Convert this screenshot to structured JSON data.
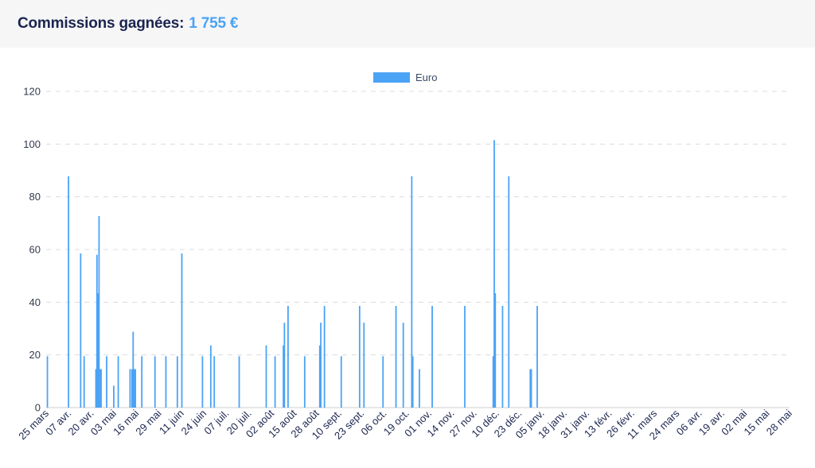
{
  "header": {
    "label": "Commissions gagnées:",
    "amount": "1 755 €"
  },
  "chart_data": {
    "type": "bar",
    "legend": {
      "label": "Euro",
      "position": "top-center"
    },
    "color": "#4ba3f5",
    "ylim": [
      0,
      120
    ],
    "yticks": [
      0,
      20,
      40,
      60,
      80,
      100,
      120
    ],
    "grid": true,
    "xticks": [
      "25 mars",
      "07 avr.",
      "20 avr.",
      "03 mai",
      "16 mai",
      "29 mai",
      "11 juin",
      "24 juin",
      "07 juil.",
      "20 juil.",
      "02 août",
      "15 août",
      "28 août",
      "10 sept.",
      "23 sept.",
      "06 oct.",
      "19 oct.",
      "01 nov.",
      "14 nov.",
      "27 nov.",
      "10 déc.",
      "23 déc.",
      "05 janv.",
      "18 janv.",
      "31 janv.",
      "13 févr.",
      "26 févr.",
      "11 mars",
      "24 mars",
      "06 avr.",
      "19 avr.",
      "02 mai",
      "15 mai",
      "28 mai"
    ],
    "points": [
      {
        "day": 0.3,
        "value": 19.5
      },
      {
        "day": 12.5,
        "value": 87.8
      },
      {
        "day": 19.5,
        "value": 58.5
      },
      {
        "day": 21.5,
        "value": 19.5
      },
      {
        "day": 28.3,
        "value": 14.6
      },
      {
        "day": 28.9,
        "value": 58.0
      },
      {
        "day": 29.5,
        "value": 43.4
      },
      {
        "day": 30.1,
        "value": 72.7
      },
      {
        "day": 30.7,
        "value": 14.6
      },
      {
        "day": 31.3,
        "value": 14.6
      },
      {
        "day": 34.5,
        "value": 19.5
      },
      {
        "day": 38.6,
        "value": 8.3
      },
      {
        "day": 41.2,
        "value": 19.5
      },
      {
        "day": 48.0,
        "value": 14.6
      },
      {
        "day": 49.8,
        "value": 28.8
      },
      {
        "day": 49.1,
        "value": 14.6
      },
      {
        "day": 50.5,
        "value": 14.6
      },
      {
        "day": 51.1,
        "value": 14.6
      },
      {
        "day": 54.8,
        "value": 19.5
      },
      {
        "day": 62.4,
        "value": 19.5
      },
      {
        "day": 68.7,
        "value": 19.5
      },
      {
        "day": 75.3,
        "value": 19.5
      },
      {
        "day": 77.9,
        "value": 58.5
      },
      {
        "day": 89.8,
        "value": 19.5
      },
      {
        "day": 94.6,
        "value": 23.6
      },
      {
        "day": 96.6,
        "value": 19.5
      },
      {
        "day": 111.0,
        "value": 19.5
      },
      {
        "day": 126.6,
        "value": 23.6
      },
      {
        "day": 131.7,
        "value": 19.5
      },
      {
        "day": 136.5,
        "value": 23.6
      },
      {
        "day": 137.1,
        "value": 32.2
      },
      {
        "day": 139.2,
        "value": 38.6
      },
      {
        "day": 148.8,
        "value": 19.5
      },
      {
        "day": 157.5,
        "value": 23.6
      },
      {
        "day": 158.1,
        "value": 32.2
      },
      {
        "day": 160.2,
        "value": 38.6
      },
      {
        "day": 169.9,
        "value": 19.5
      },
      {
        "day": 180.5,
        "value": 38.6
      },
      {
        "day": 183.0,
        "value": 32.2
      },
      {
        "day": 194.0,
        "value": 19.5
      },
      {
        "day": 201.5,
        "value": 38.6
      },
      {
        "day": 205.7,
        "value": 32.2
      },
      {
        "day": 210.6,
        "value": 87.8
      },
      {
        "day": 211.2,
        "value": 19.5
      },
      {
        "day": 215.0,
        "value": 14.6
      },
      {
        "day": 222.4,
        "value": 38.6
      },
      {
        "day": 241.2,
        "value": 38.6
      },
      {
        "day": 257.6,
        "value": 19.5
      },
      {
        "day": 258.2,
        "value": 101.5
      },
      {
        "day": 258.8,
        "value": 43.4
      },
      {
        "day": 263.0,
        "value": 38.6
      },
      {
        "day": 266.6,
        "value": 87.8
      },
      {
        "day": 279.0,
        "value": 14.6
      },
      {
        "day": 279.6,
        "value": 14.6
      },
      {
        "day": 283.0,
        "value": 38.6
      }
    ]
  }
}
